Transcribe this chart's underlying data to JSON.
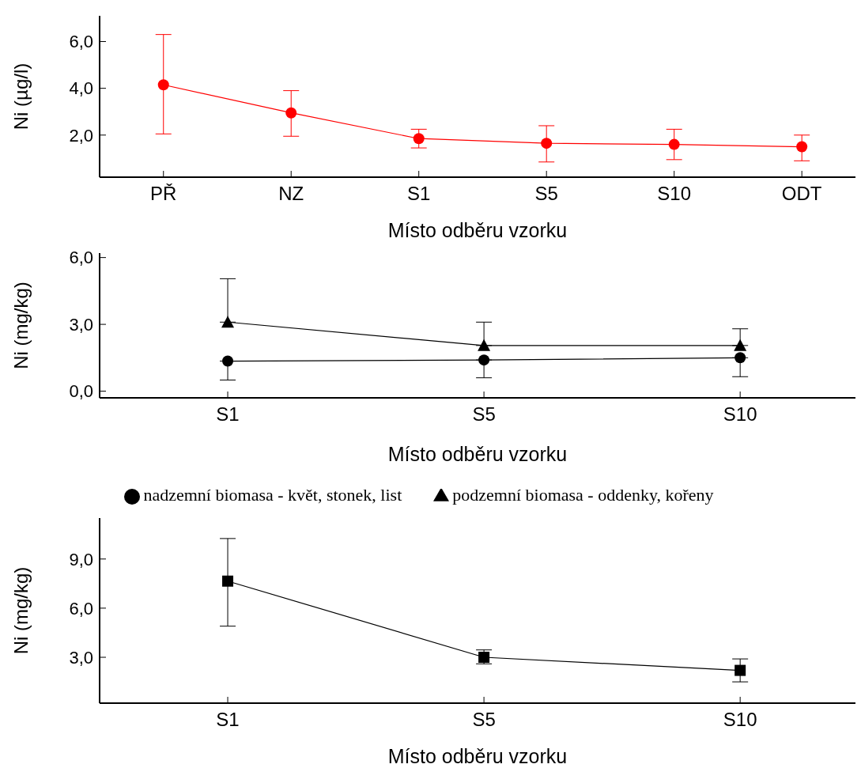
{
  "chart_data": [
    {
      "type": "line",
      "xlabel": "Místo odběru vzorku",
      "ylabel": "Ni (µg/l)",
      "categories": [
        "PŘ",
        "NZ",
        "S1",
        "S5",
        "S10",
        "ODT"
      ],
      "ylim": [
        0.2,
        7.1
      ],
      "yticks": [
        {
          "value": 2,
          "label": "2,0"
        },
        {
          "value": 4,
          "label": "4,0"
        },
        {
          "value": 6,
          "label": "6,0"
        }
      ],
      "legend": false,
      "series": [
        {
          "color": "#ff0000",
          "marker": "circle",
          "values": [
            4.15,
            2.95,
            1.85,
            1.65,
            1.6,
            1.5
          ],
          "errors": [
            [
              2.05,
              6.3
            ],
            [
              1.95,
              3.9
            ],
            [
              1.45,
              2.25
            ],
            [
              0.85,
              2.4
            ],
            [
              0.95,
              2.25
            ],
            [
              0.9,
              2.0
            ]
          ]
        }
      ]
    },
    {
      "type": "line",
      "xlabel": "Místo odběru vzorku",
      "ylabel": "Ni (mg/kg)",
      "categories": [
        "S1",
        "S5",
        "S10"
      ],
      "ylim": [
        -0.3,
        6.2
      ],
      "yticks": [
        {
          "value": 0,
          "label": "0,0"
        },
        {
          "value": 3,
          "label": "3,0"
        },
        {
          "value": 6,
          "label": "6,0"
        }
      ],
      "legend": "bottom",
      "series": [
        {
          "name": "nadzemní biomasa - květ, stonek, list",
          "color": "#000000",
          "marker": "circle",
          "values": [
            1.35,
            1.4,
            1.5
          ],
          "errors": [
            [
              0.5,
              1.35
            ],
            [
              0.6,
              1.4
            ],
            [
              0.65,
              1.5
            ]
          ]
        },
        {
          "name": "podzemní biomasa - oddenky, kořeny",
          "color": "#000000",
          "marker": "triangle",
          "values": [
            3.1,
            2.05,
            2.05
          ],
          "errors": [
            [
              3.1,
              5.05
            ],
            [
              2.05,
              3.1
            ],
            [
              2.05,
              2.8
            ]
          ]
        }
      ]
    },
    {
      "type": "line",
      "xlabel": "Místo odběru vzorku",
      "ylabel": "Ni (mg/kg)",
      "categories": [
        "S1",
        "S5",
        "S10"
      ],
      "ylim": [
        0.2,
        11.5
      ],
      "yticks": [
        {
          "value": 3,
          "label": "3,0"
        },
        {
          "value": 6,
          "label": "6,0"
        },
        {
          "value": 9,
          "label": "9,0"
        }
      ],
      "legend": false,
      "series": [
        {
          "color": "#000000",
          "marker": "square",
          "values": [
            7.65,
            3.0,
            2.2
          ],
          "errors": [
            [
              4.9,
              10.25
            ],
            [
              2.6,
              3.45
            ],
            [
              1.5,
              2.9
            ]
          ]
        }
      ]
    }
  ]
}
